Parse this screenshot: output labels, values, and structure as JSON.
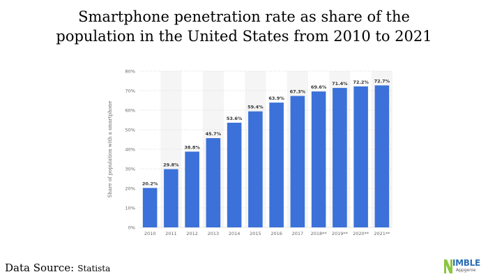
{
  "title_lines": [
    "Smartphone penetration rate as share of the",
    "population in the United States from 2010 to 2021"
  ],
  "source": {
    "label": "Data Source:",
    "name": "Statista"
  },
  "logo": {
    "name": "IMBLE",
    "tagline": "Appgenie"
  },
  "colors": {
    "bar": "#3b71d8",
    "alt_band": "#f5f5f5",
    "grid": "#dcdcdc",
    "axis_text": "#666666",
    "label_text": "#333333"
  },
  "chart_data": {
    "type": "bar",
    "ylabel": "Share of population with a smartphone",
    "ylim": [
      0,
      80
    ],
    "yticks": [
      0,
      10,
      20,
      30,
      40,
      50,
      60,
      70,
      80
    ],
    "ytick_labels": [
      "0%",
      "10%",
      "20%",
      "30%",
      "40%",
      "50%",
      "60%",
      "70%",
      "80%"
    ],
    "categories": [
      "2010",
      "2011",
      "2012",
      "2013",
      "2014",
      "2015",
      "2016",
      "2017",
      "2018**",
      "2019**",
      "2020**",
      "2021**"
    ],
    "values": [
      20.2,
      29.8,
      38.8,
      45.7,
      53.6,
      59.4,
      63.9,
      67.3,
      69.6,
      71.4,
      72.2,
      72.7
    ],
    "value_labels": [
      "20.2%",
      "29.8%",
      "38.8%",
      "45.7%",
      "53.6%",
      "59.4%",
      "63.9%",
      "67.3%",
      "69.6%",
      "71.4%",
      "72.2%",
      "72.7%"
    ],
    "grid": true
  }
}
